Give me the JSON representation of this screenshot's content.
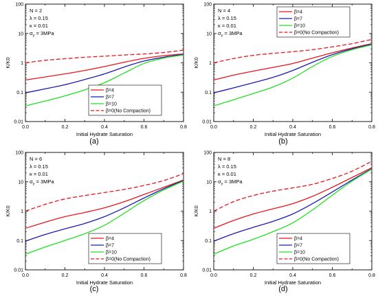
{
  "chart_data": [
    {
      "type": "line",
      "panel_label": "(a)",
      "xlabel": "Initial Hydrate Saturation",
      "ylabel": "K/K0",
      "xlim": [
        0,
        0.8
      ],
      "ylim": [
        0.01,
        100
      ],
      "y_scale": "log",
      "x_ticks": [
        "0.0",
        "0.2",
        "0.4",
        "0.6",
        "0.8"
      ],
      "y_ticks": [
        "0.01",
        "0.1",
        "1",
        "10",
        "100"
      ],
      "params": [
        "N = 2",
        "λ = 0.15",
        "κ = 0.01",
        "σy = 3MPa"
      ],
      "legend_placement": "bottom-right",
      "x": [
        0,
        0.1,
        0.2,
        0.3,
        0.4,
        0.5,
        0.6,
        0.7,
        0.8
      ],
      "series": [
        {
          "name": "β=4",
          "color": "#e8141b",
          "style": "solid",
          "values": [
            0.26,
            0.33,
            0.42,
            0.55,
            0.75,
            1.05,
            1.42,
            1.75,
            2.0
          ]
        },
        {
          "name": "β=7",
          "color": "#1a1ab0",
          "style": "solid",
          "values": [
            0.095,
            0.13,
            0.18,
            0.27,
            0.42,
            0.72,
            1.15,
            1.55,
            1.95
          ]
        },
        {
          "name": "β=10",
          "color": "#1fe01f",
          "style": "solid",
          "values": [
            0.034,
            0.05,
            0.075,
            0.12,
            0.21,
            0.45,
            0.95,
            1.45,
            1.85
          ]
        },
        {
          "name": "β=0(No Compaction)",
          "color": "#e8141b",
          "style": "dashed",
          "values": [
            1.0,
            1.22,
            1.38,
            1.55,
            1.68,
            1.85,
            2.0,
            2.25,
            2.7
          ]
        }
      ]
    },
    {
      "type": "line",
      "panel_label": "(b)",
      "xlabel": "Initial Hydrate Saturation",
      "ylabel": "K/K0",
      "xlim": [
        0,
        0.8
      ],
      "ylim": [
        0.01,
        100
      ],
      "y_scale": "log",
      "x_ticks": [
        "0.0",
        "0.2",
        "0.4",
        "0.6",
        "0.8"
      ],
      "y_ticks": [
        "0.01",
        "0.1",
        "1",
        "10",
        "100"
      ],
      "params": [
        "N = 4",
        "λ = 0.15",
        "κ = 0.01",
        "σy = 3MPa"
      ],
      "legend_placement": "top-right",
      "x": [
        0,
        0.1,
        0.2,
        0.3,
        0.4,
        0.5,
        0.6,
        0.7,
        0.8
      ],
      "series": [
        {
          "name": "β=4",
          "color": "#e8141b",
          "style": "solid",
          "values": [
            0.26,
            0.38,
            0.52,
            0.7,
            0.95,
            1.45,
            2.2,
            3.2,
            4.5
          ]
        },
        {
          "name": "β=7",
          "color": "#1a1ab0",
          "style": "solid",
          "values": [
            0.095,
            0.14,
            0.21,
            0.32,
            0.55,
            1.05,
            1.9,
            3.0,
            4.3
          ]
        },
        {
          "name": "β=10",
          "color": "#1fe01f",
          "style": "solid",
          "values": [
            0.034,
            0.055,
            0.09,
            0.15,
            0.3,
            0.75,
            1.65,
            2.8,
            4.1
          ]
        },
        {
          "name": "β=0(No Compaction)",
          "color": "#e8141b",
          "style": "dashed",
          "values": [
            1.0,
            1.4,
            1.8,
            2.1,
            2.4,
            2.8,
            3.5,
            4.5,
            6.3
          ]
        }
      ]
    },
    {
      "type": "line",
      "panel_label": "(c)",
      "xlabel": "Initial Hydrate Saturation",
      "ylabel": "K/K0",
      "xlim": [
        0,
        0.8
      ],
      "ylim": [
        0.01,
        100
      ],
      "y_scale": "log",
      "x_ticks": [
        "0.0",
        "0.2",
        "0.4",
        "0.6",
        "0.8"
      ],
      "y_ticks": [
        "0.01",
        "0.1",
        "1",
        "10",
        "100"
      ],
      "params": [
        "N = 6",
        "λ = 0.15",
        "κ = 0.01",
        "σy = 3MPa"
      ],
      "legend_placement": "bottom-right",
      "x": [
        0,
        0.1,
        0.2,
        0.3,
        0.4,
        0.5,
        0.6,
        0.7,
        0.8
      ],
      "series": [
        {
          "name": "β=4",
          "color": "#e8141b",
          "style": "solid",
          "values": [
            0.26,
            0.42,
            0.65,
            0.9,
            1.3,
            2.1,
            3.7,
            6.5,
            11.5
          ]
        },
        {
          "name": "β=7",
          "color": "#1a1ab0",
          "style": "solid",
          "values": [
            0.095,
            0.16,
            0.25,
            0.38,
            0.65,
            1.3,
            2.8,
            5.8,
            11.0
          ]
        },
        {
          "name": "β=10",
          "color": "#1fe01f",
          "style": "solid",
          "values": [
            0.034,
            0.06,
            0.1,
            0.17,
            0.33,
            0.85,
            2.3,
            5.3,
            10.5
          ]
        },
        {
          "name": "β=0(No Compaction)",
          "color": "#e8141b",
          "style": "dashed",
          "values": [
            1.0,
            1.7,
            2.6,
            3.4,
            4.3,
            5.5,
            7.5,
            11.0,
            19.0
          ]
        }
      ]
    },
    {
      "type": "line",
      "panel_label": "(d)",
      "xlabel": "Initial Hydrate Saturation",
      "ylabel": "K/K0",
      "xlim": [
        0,
        0.8
      ],
      "ylim": [
        0.01,
        100
      ],
      "y_scale": "log",
      "x_ticks": [
        "0.0",
        "0.2",
        "0.4",
        "0.6",
        "0.8"
      ],
      "y_ticks": [
        "0.01",
        "0.1",
        "1",
        "10",
        "100"
      ],
      "params": [
        "N = 8",
        "λ = 0.15",
        "κ = 0.01",
        "σy = 3MPa"
      ],
      "legend_placement": "bottom-right",
      "x": [
        0,
        0.1,
        0.2,
        0.3,
        0.4,
        0.5,
        0.6,
        0.7,
        0.8
      ],
      "series": [
        {
          "name": "β=4",
          "color": "#e8141b",
          "style": "solid",
          "values": [
            0.26,
            0.48,
            0.8,
            1.2,
            1.8,
            3.2,
            6.5,
            14.0,
            30.0
          ]
        },
        {
          "name": "β=7",
          "color": "#1a1ab0",
          "style": "solid",
          "values": [
            0.095,
            0.17,
            0.28,
            0.45,
            0.8,
            1.8,
            4.5,
            11.5,
            28.0
          ]
        },
        {
          "name": "β=10",
          "color": "#1fe01f",
          "style": "solid",
          "values": [
            0.034,
            0.065,
            0.11,
            0.2,
            0.4,
            1.1,
            3.5,
            10.5,
            27.0
          ]
        },
        {
          "name": "β=0(No Compaction)",
          "color": "#e8141b",
          "style": "dashed",
          "values": [
            1.0,
            2.1,
            3.4,
            4.8,
            6.2,
            8.2,
            13.0,
            23.0,
            50.0
          ]
        }
      ]
    }
  ]
}
